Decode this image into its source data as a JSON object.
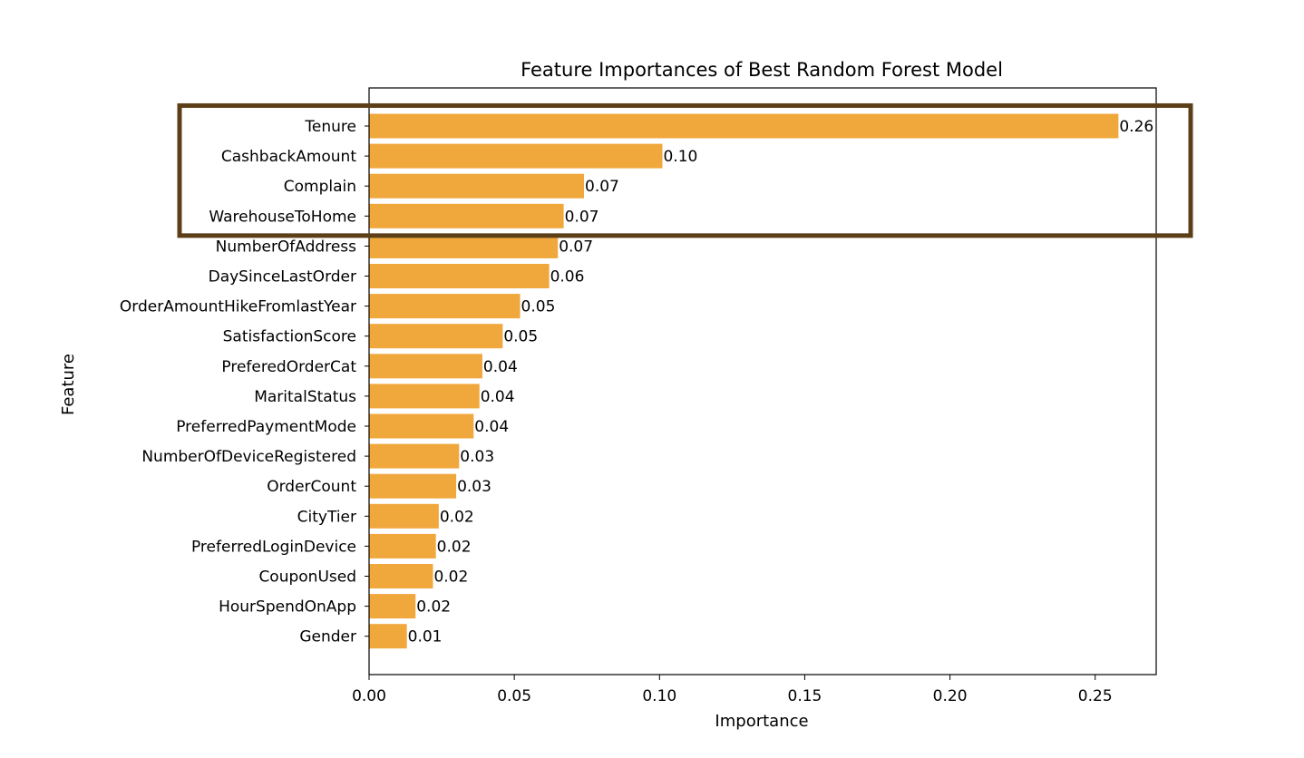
{
  "chart_data": {
    "type": "bar",
    "orientation": "horizontal",
    "title": "Feature Importances of Best Random Forest Model",
    "xlabel": "Importance",
    "ylabel": "Feature",
    "xlim": [
      0,
      0.271
    ],
    "xticks": [
      "0.00",
      "0.05",
      "0.10",
      "0.15",
      "0.20",
      "0.25"
    ],
    "grid": false,
    "bar_color": "#f0a73c",
    "highlight_color": "#5c3f17",
    "highlighted_categories": [
      "Tenure",
      "CashbackAmount",
      "Complain",
      "WarehouseToHome"
    ],
    "categories": [
      "Tenure",
      "CashbackAmount",
      "Complain",
      "WarehouseToHome",
      "NumberOfAddress",
      "DaySinceLastOrder",
      "OrderAmountHikeFromlastYear",
      "SatisfactionScore",
      "PreferedOrderCat",
      "MaritalStatus",
      "PreferredPaymentMode",
      "NumberOfDeviceRegistered",
      "OrderCount",
      "CityTier",
      "PreferredLoginDevice",
      "CouponUsed",
      "HourSpendOnApp",
      "Gender"
    ],
    "values": [
      0.258,
      0.101,
      0.074,
      0.067,
      0.065,
      0.062,
      0.052,
      0.046,
      0.039,
      0.038,
      0.036,
      0.031,
      0.03,
      0.024,
      0.023,
      0.022,
      0.016,
      0.013
    ],
    "value_labels": [
      "0.26",
      "0.10",
      "0.07",
      "0.07",
      "0.07",
      "0.06",
      "0.05",
      "0.05",
      "0.04",
      "0.04",
      "0.04",
      "0.03",
      "0.03",
      "0.02",
      "0.02",
      "0.02",
      "0.02",
      "0.01"
    ]
  }
}
